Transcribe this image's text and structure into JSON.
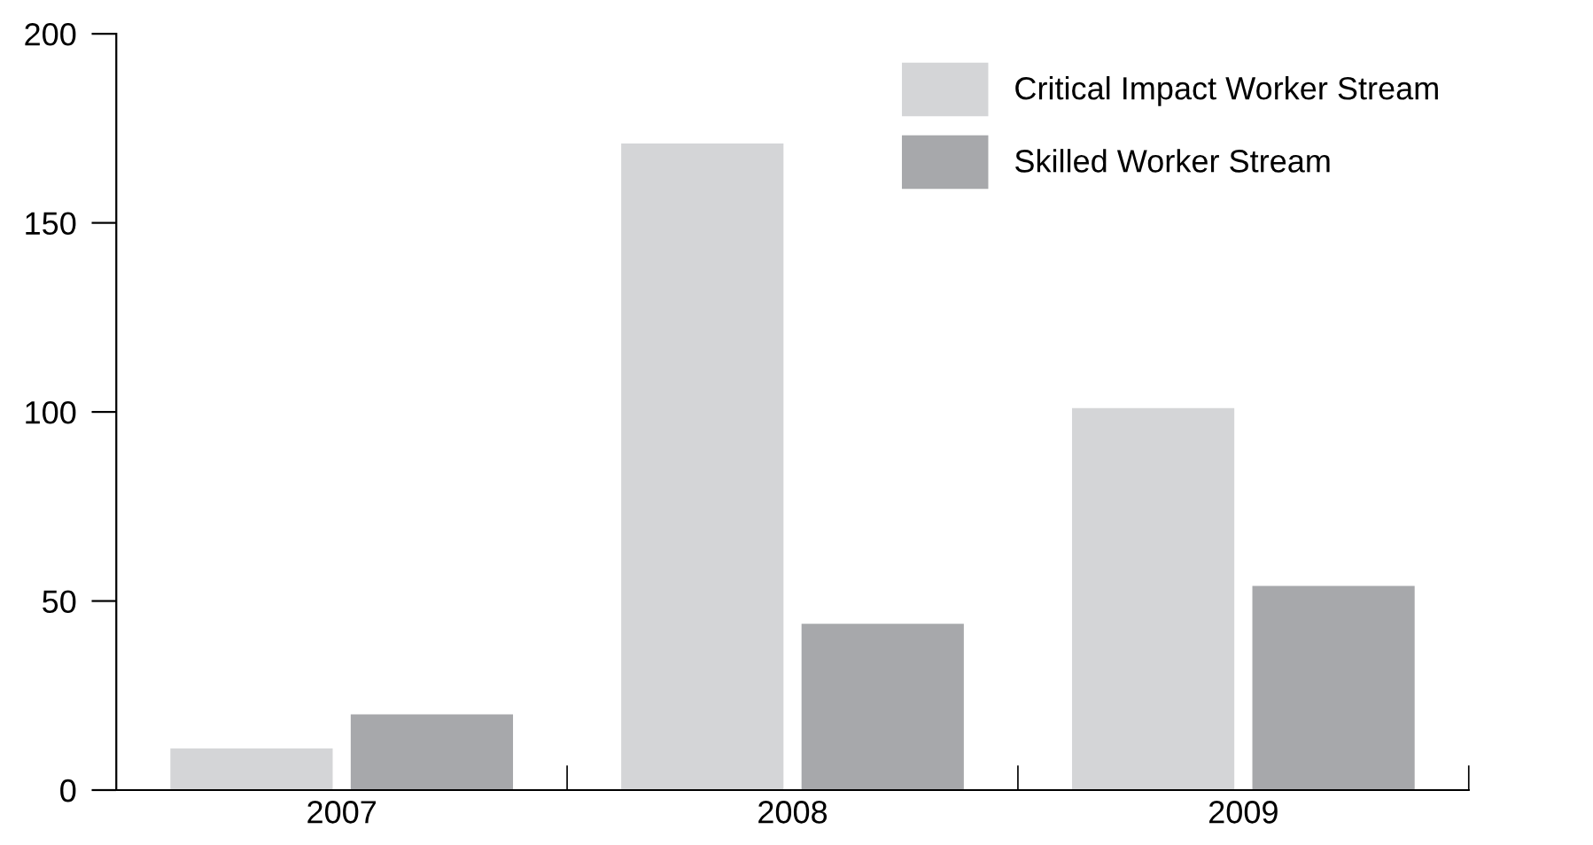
{
  "chart_data": {
    "type": "bar",
    "categories": [
      "2007",
      "2008",
      "2009"
    ],
    "series": [
      {
        "name": "Critical Impact Worker Stream",
        "color": "#d4d5d7",
        "values": [
          11,
          171,
          101
        ]
      },
      {
        "name": "Skilled Worker Stream",
        "color": "#a7a8ab",
        "values": [
          20,
          44,
          54
        ]
      }
    ],
    "ylim": [
      0,
      200
    ],
    "yticks": [
      0,
      50,
      100,
      150,
      200
    ],
    "grid": false,
    "legend": "top right"
  }
}
